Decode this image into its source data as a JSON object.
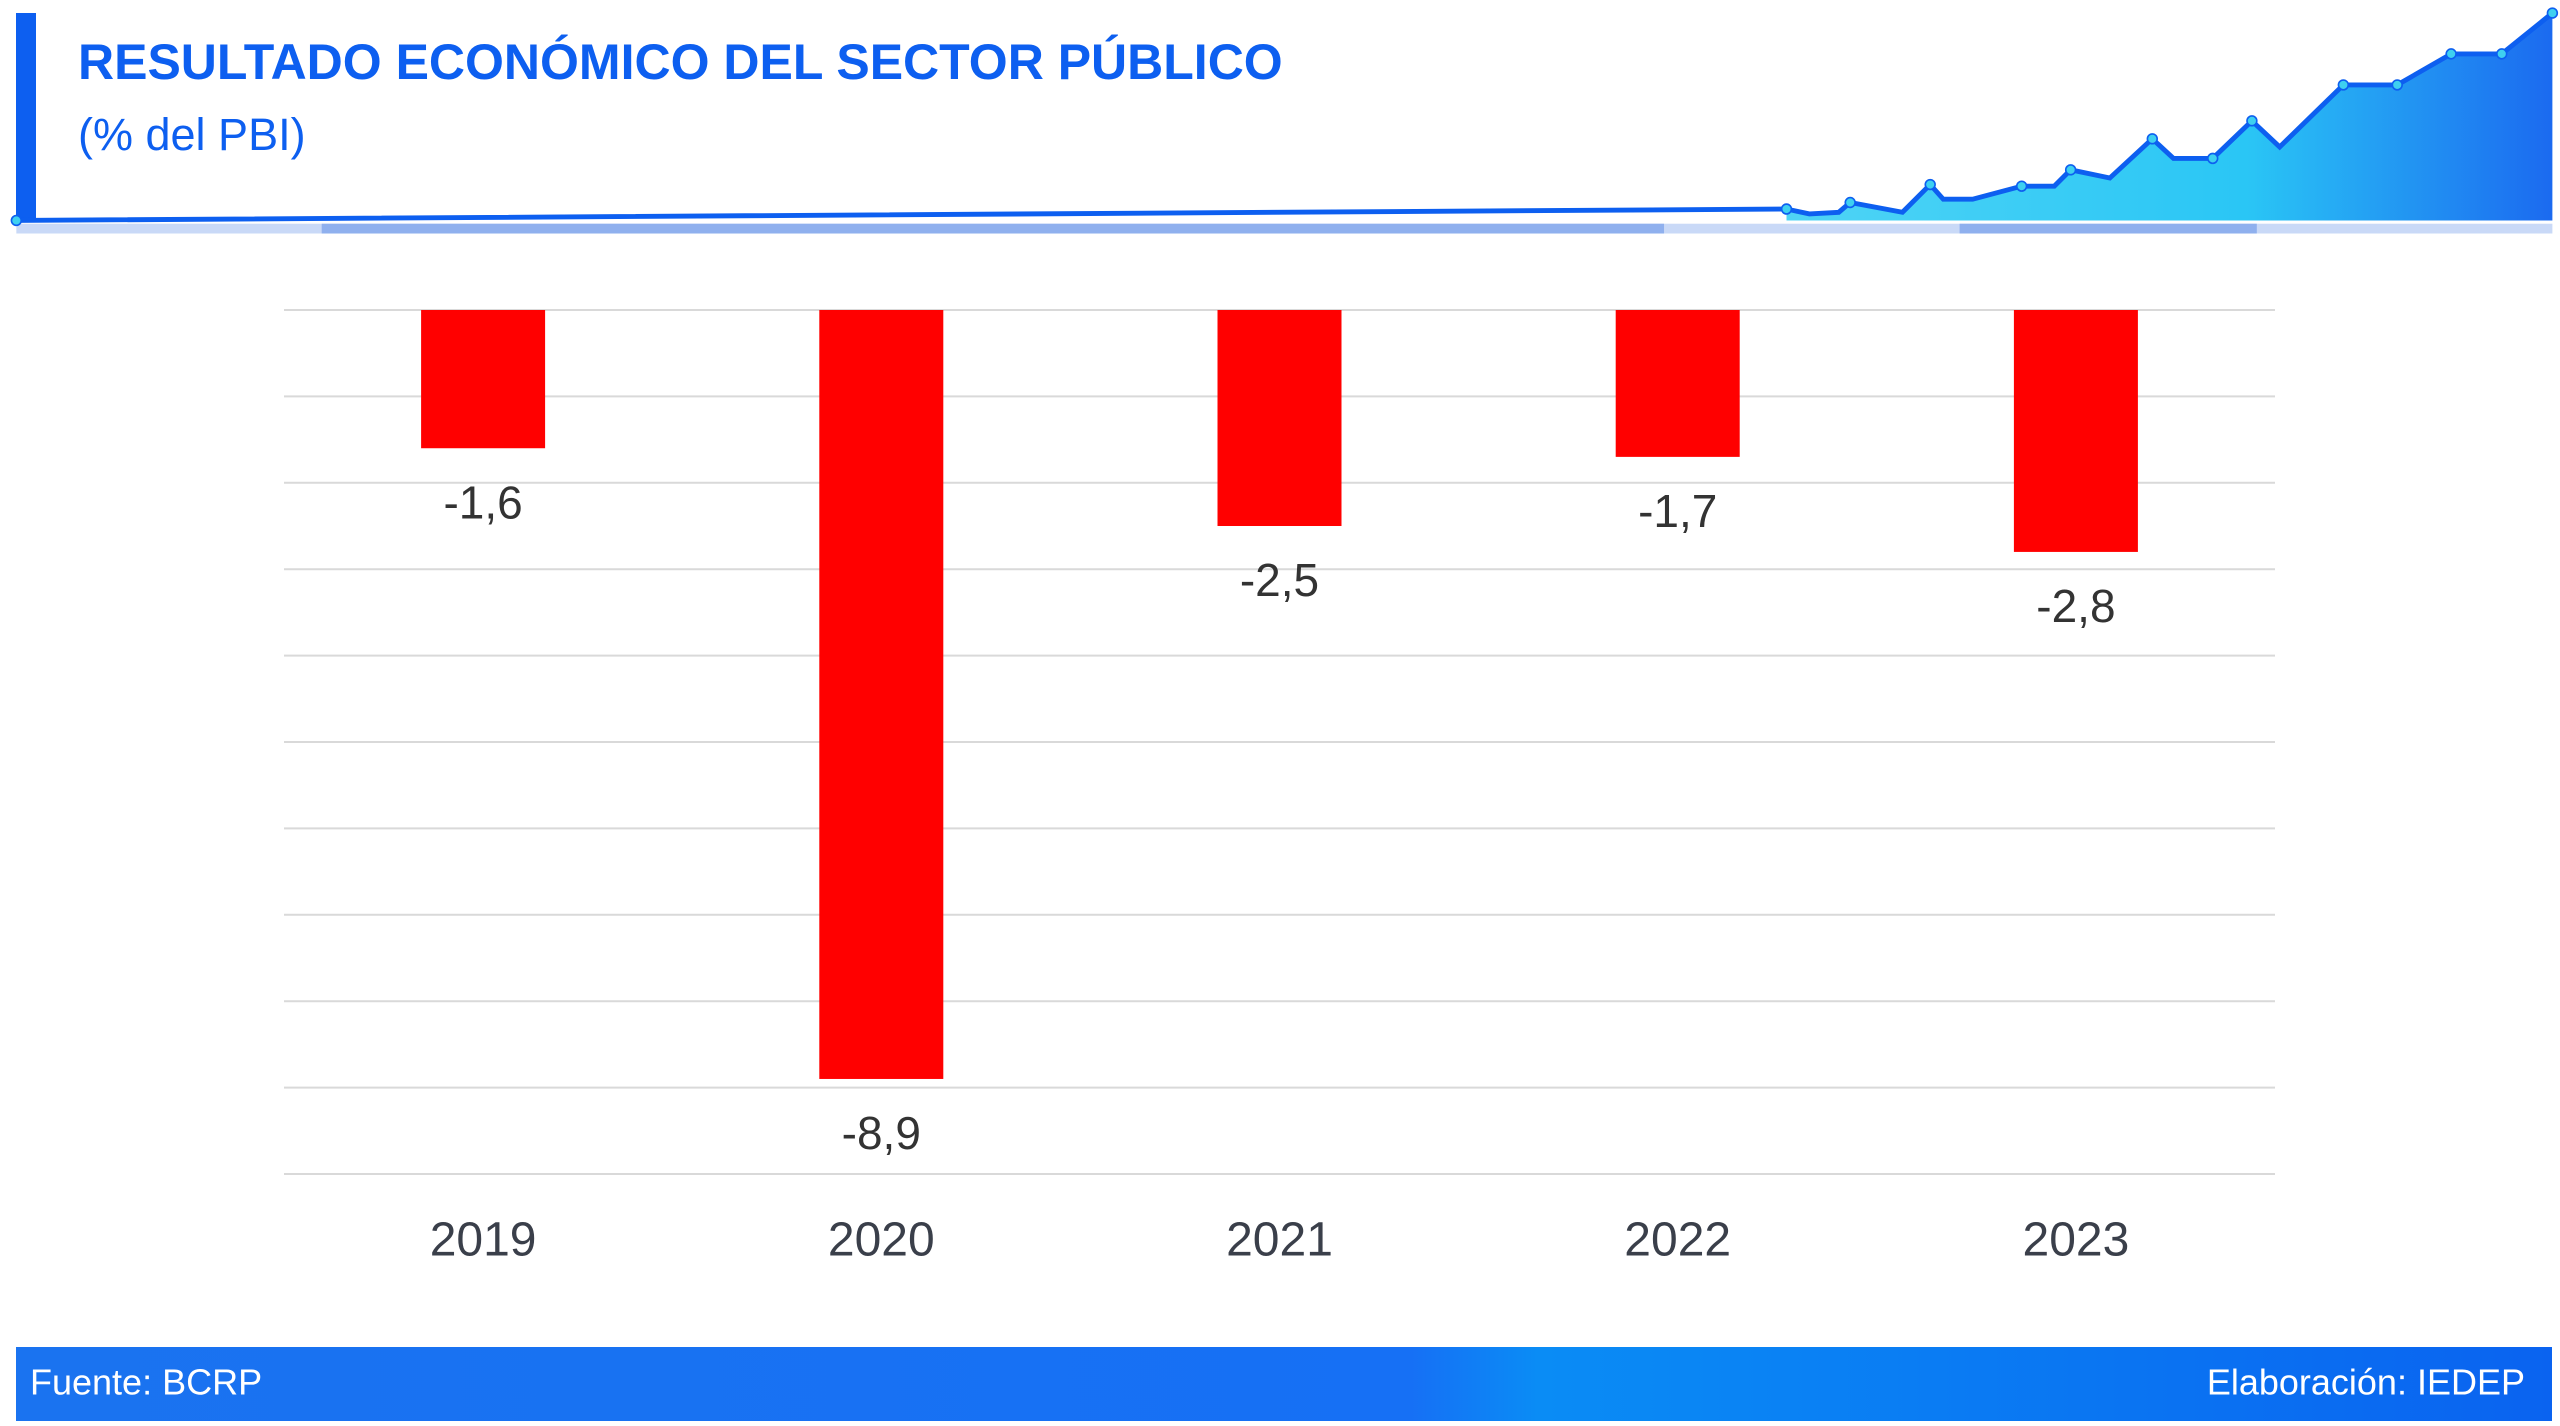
{
  "chart_data": {
    "type": "bar",
    "title": "RESULTADO ECONÓMICO DEL SECTOR PÚBLICO",
    "subtitle": "(% del PBI)",
    "categories": [
      "2019",
      "2020",
      "2021",
      "2022",
      "2023"
    ],
    "values": [
      -1.6,
      -8.9,
      -2.5,
      -1.7,
      -2.8
    ],
    "value_labels": [
      "-1,6",
      "-8,9",
      "-2,5",
      "-1,7",
      "-2,8"
    ],
    "color": "#ff0000",
    "ylim": [
      -10,
      0
    ],
    "yticks": [
      -10,
      -9,
      -8,
      -7,
      -6,
      -5,
      -4,
      -3,
      -2,
      -1,
      0
    ],
    "grid": true,
    "source": "Fuente: BCRP",
    "credit": "Elaboración: IEDEP"
  }
}
